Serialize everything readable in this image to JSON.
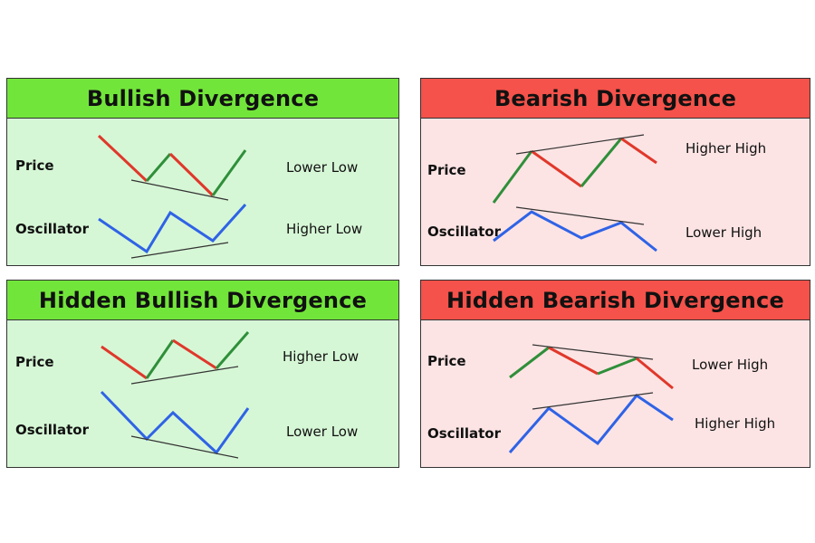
{
  "colors": {
    "bull_header": "#72e53b",
    "bull_body": "#d6f7d6",
    "bear_header": "#f4524a",
    "bear_body": "#fde4e4",
    "line_red": "#e0382b",
    "line_green": "#2f8f3a",
    "line_blue": "#2f63e6",
    "trend_line": "#333333"
  },
  "panels": [
    {
      "id": "bullish",
      "title": "Bullish Divergence",
      "theme": "bull",
      "row_labels": [
        "Price",
        "Oscillator"
      ],
      "annotations": [
        "Lower Low",
        "Higher Low"
      ]
    },
    {
      "id": "bearish",
      "title": "Bearish Divergence",
      "theme": "bear",
      "row_labels": [
        "Price",
        "Oscillator"
      ],
      "annotations": [
        "Higher High",
        "Lower High"
      ]
    },
    {
      "id": "hidden-bullish",
      "title": "Hidden Bullish Divergence",
      "theme": "bull",
      "row_labels": [
        "Price",
        "Oscillator"
      ],
      "annotations": [
        "Higher Low",
        "Lower Low"
      ]
    },
    {
      "id": "hidden-bearish",
      "title": "Hidden Bearish Divergence",
      "theme": "bear",
      "row_labels": [
        "Price",
        "Oscillator"
      ],
      "annotations": [
        "Lower High",
        "Higher High"
      ]
    }
  ]
}
